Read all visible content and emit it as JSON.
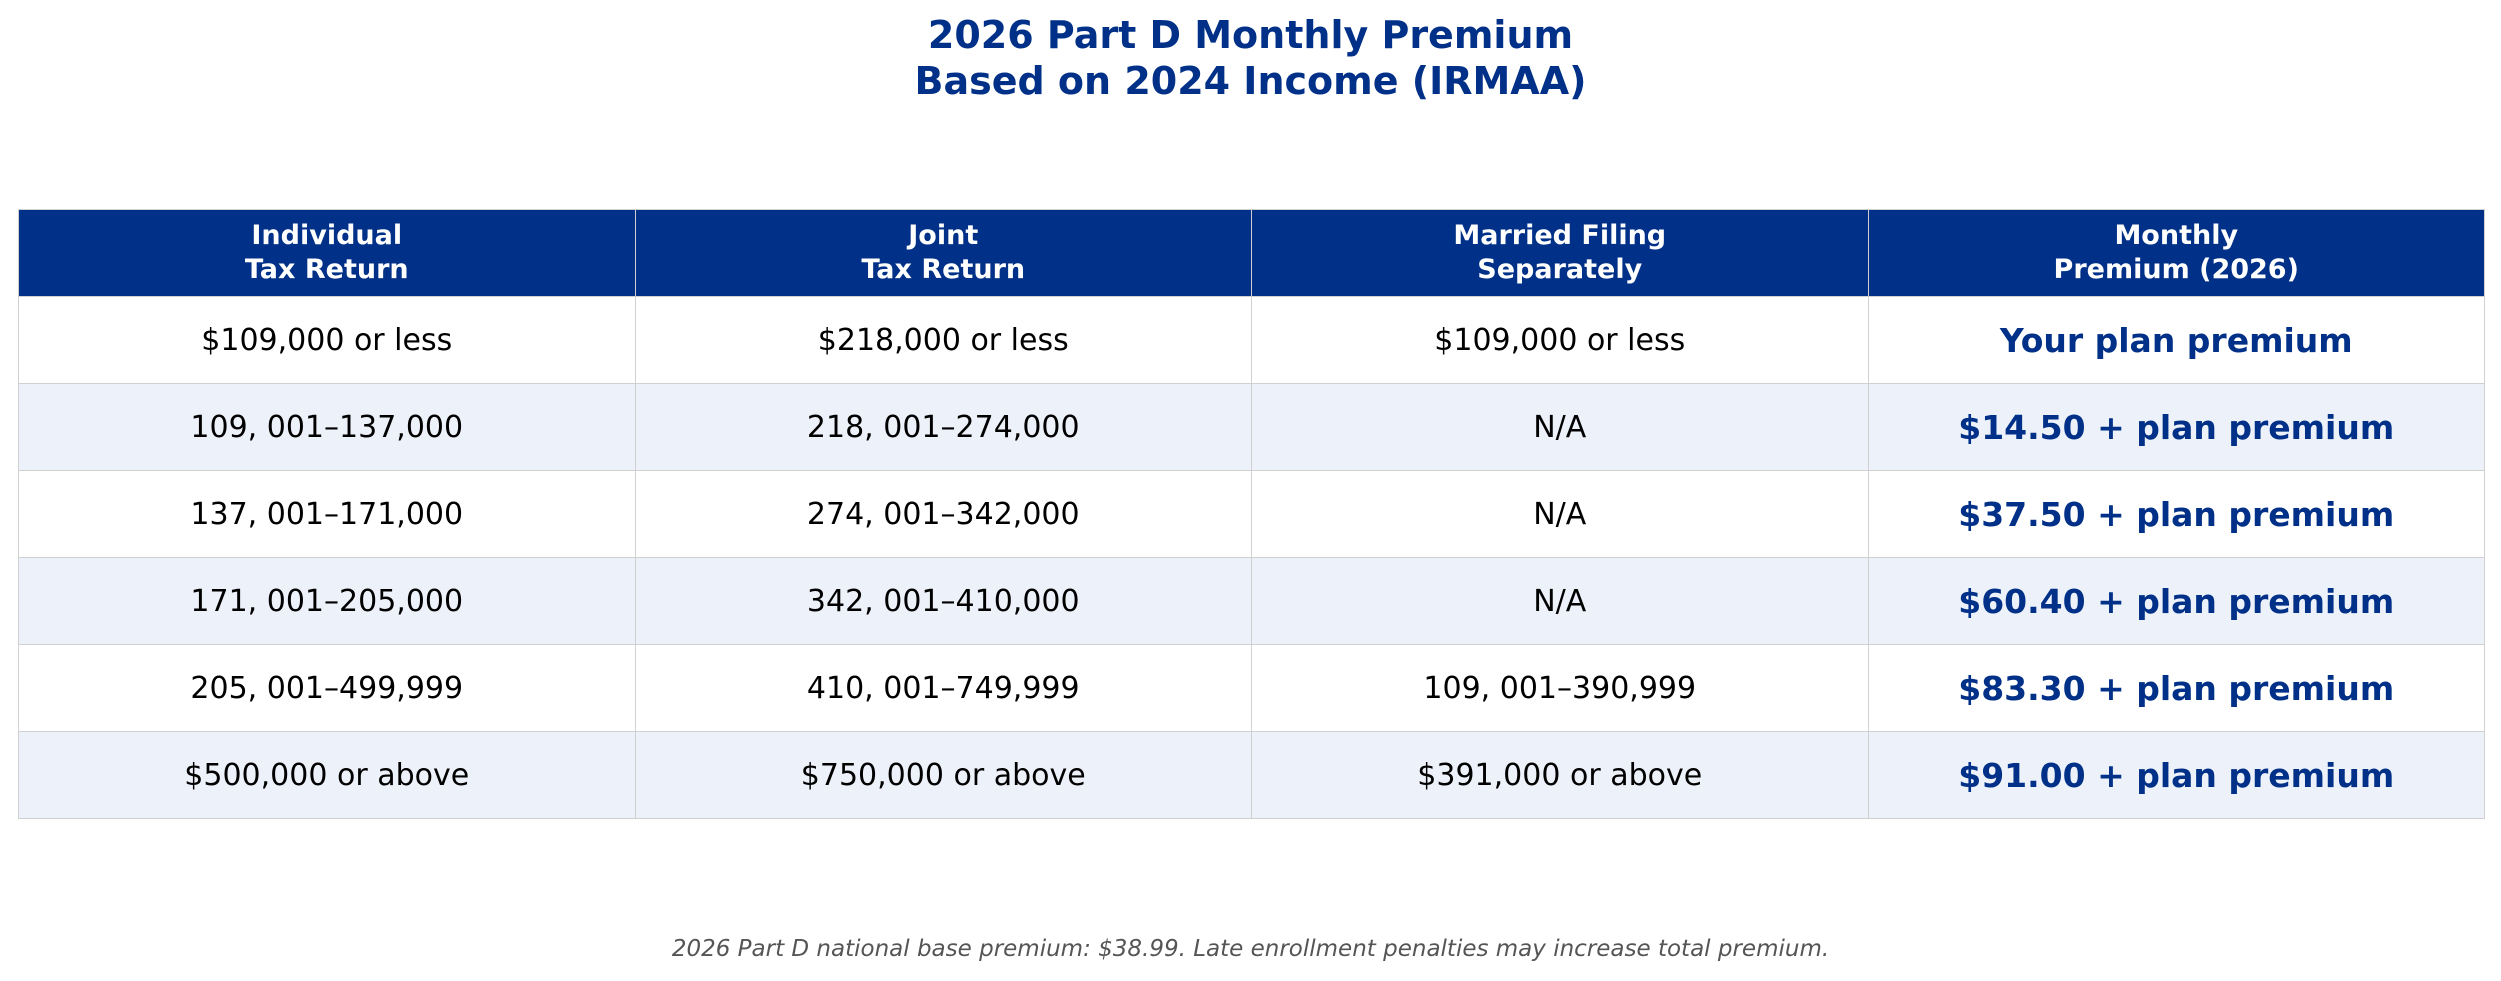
{
  "chart_data": {
    "type": "table",
    "title": "2026 Part D Monthly Premium\nBased on 2024 Income (IRMAA)",
    "title_lines": [
      "2026 Part D Monthly Premium",
      "Based on 2024 Income (IRMAA)"
    ],
    "columns": [
      [
        "Individual",
        "Tax Return"
      ],
      [
        "Joint",
        "Tax Return"
      ],
      [
        "Married Filing",
        "Separately"
      ],
      [
        "Monthly",
        "Premium (2026)"
      ]
    ],
    "rows": [
      [
        "$109,000 or less",
        "$218,000 or less",
        "$109,000 or less",
        "Your plan premium"
      ],
      [
        "109, 001–137,000",
        "218, 001–274,000",
        "N/A",
        "$14.50 + plan premium"
      ],
      [
        "137, 001–171,000",
        "274, 001–342,000",
        "N/A",
        "$37.50 + plan premium"
      ],
      [
        "171, 001–205,000",
        "342, 001–410,000",
        "N/A",
        "$60.40 + plan premium"
      ],
      [
        "205, 001–499,999",
        "410, 001–749,999",
        "109, 001–390,999",
        "$83.30 + plan premium"
      ],
      [
        "$500,000 or above",
        "$750,000 or above",
        "$391,000 or above",
        "$91.00 + plan premium"
      ]
    ],
    "footnote": "2026 Part D national base premium: $38.99. Late enrollment penalties may increase total premium.",
    "colors": {
      "header_bg": "#003087",
      "header_text": "#ffffff",
      "title": "#003087",
      "premium_text": "#003087",
      "row_alt_bg": "#edf1f9",
      "row_bg": "#ffffff",
      "grid": "#d0d0d0",
      "footnote": "#555555"
    }
  }
}
